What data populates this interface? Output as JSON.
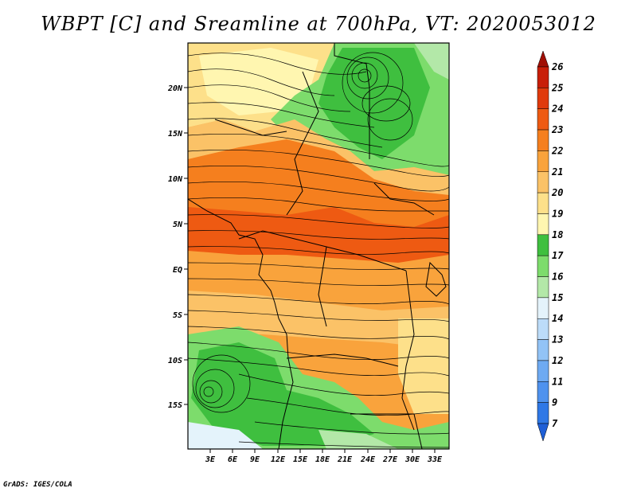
{
  "title": "WBPT [C] and Sreamline at 700hPa, VT: 2020053012",
  "credit": "GrADS: IGES/COLA",
  "map": {
    "lat_ticks": [
      "20N",
      "15N",
      "10N",
      "5N",
      "EQ",
      "5S",
      "10S",
      "15S"
    ],
    "lon_ticks": [
      "3E",
      "6E",
      "9E",
      "12E",
      "15E",
      "18E",
      "21E",
      "24E",
      "27E",
      "30E",
      "33E"
    ]
  },
  "colorbar": {
    "levels": [
      "7",
      "9",
      "11",
      "12",
      "13",
      "14",
      "15",
      "16",
      "17",
      "18",
      "19",
      "20",
      "21",
      "22",
      "23",
      "24",
      "25",
      "26"
    ],
    "colors": [
      "#1f5fd6",
      "#2f78e6",
      "#4f92ee",
      "#6eaaf2",
      "#92c3f6",
      "#bcdcf9",
      "#e4f3fb",
      "#b3e8a8",
      "#7ddc6c",
      "#3fbf3f",
      "#fff6b0",
      "#fde08a",
      "#fbc267",
      "#f9a33c",
      "#f57f1e",
      "#ee5a12",
      "#e03a0c",
      "#c81e08",
      "#a00f05"
    ]
  }
}
